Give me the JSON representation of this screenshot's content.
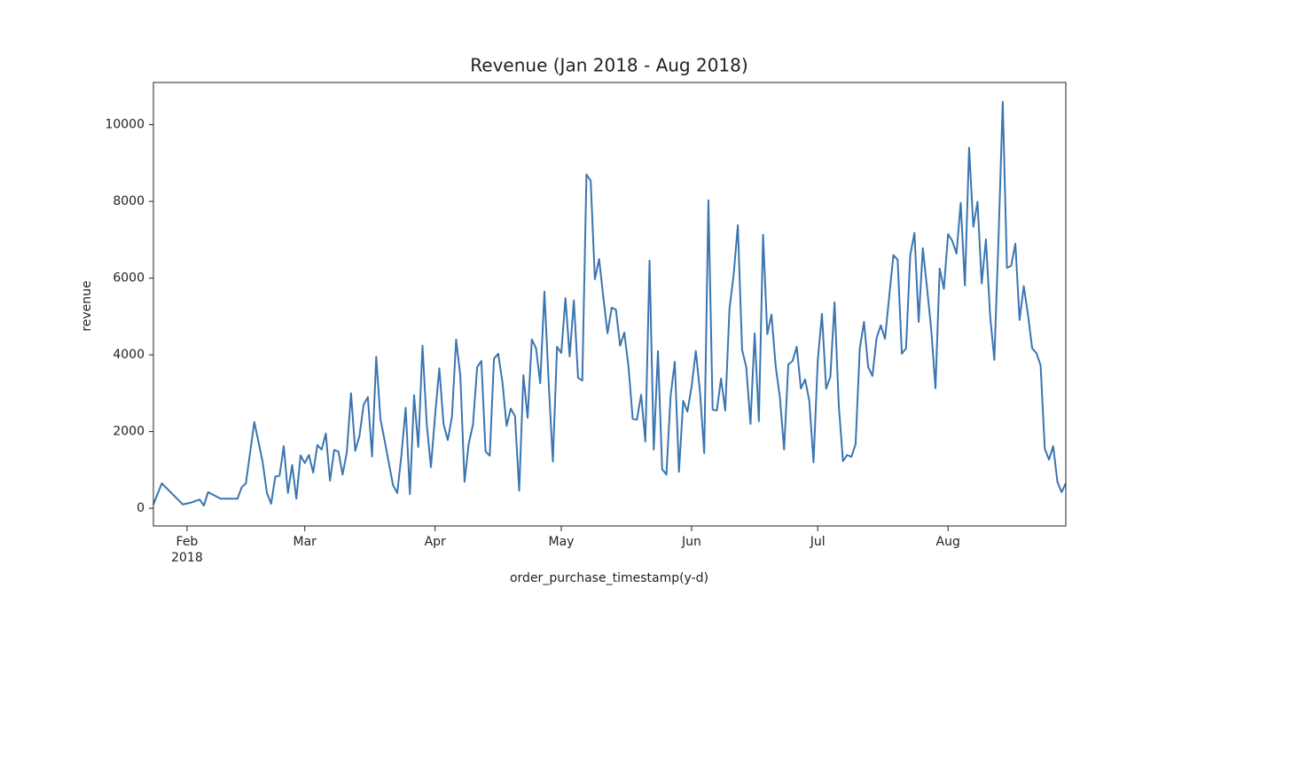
{
  "chart_data": {
    "type": "line",
    "title": "Revenue (Jan 2018 - Aug 2018)",
    "x_label": "order_purchase_timestamp(y-d)",
    "y_label": "revenue",
    "xlim": [
      "2018-01-24",
      "2018-08-29"
    ],
    "xticks": [
      {
        "value": "2018-02-01",
        "label": "Feb"
      },
      {
        "value": "2018-03-01",
        "label": "Mar"
      },
      {
        "value": "2018-04-01",
        "label": "Apr"
      },
      {
        "value": "2018-05-01",
        "label": "May"
      },
      {
        "value": "2018-06-01",
        "label": "Jun"
      },
      {
        "value": "2018-07-01",
        "label": "Jul"
      },
      {
        "value": "2018-08-01",
        "label": "Aug"
      }
    ],
    "xtick_year_label": "2018",
    "ylim": [
      -460,
      11100
    ],
    "yticks": [
      0,
      2000,
      4000,
      6000,
      8000,
      10000
    ],
    "x": [
      "2018-01-24",
      "2018-01-26",
      "2018-01-31",
      "2018-02-02",
      "2018-02-04",
      "2018-02-05",
      "2018-02-06",
      "2018-02-09",
      "2018-02-13",
      "2018-02-14",
      "2018-02-15",
      "2018-02-16",
      "2018-02-17",
      "2018-02-18",
      "2018-02-19",
      "2018-02-20",
      "2018-02-21",
      "2018-02-22",
      "2018-02-23",
      "2018-02-24",
      "2018-02-25",
      "2018-02-26",
      "2018-02-27",
      "2018-02-28",
      "2018-03-01",
      "2018-03-02",
      "2018-03-03",
      "2018-03-04",
      "2018-03-05",
      "2018-03-06",
      "2018-03-07",
      "2018-03-08",
      "2018-03-09",
      "2018-03-10",
      "2018-03-11",
      "2018-03-12",
      "2018-03-13",
      "2018-03-14",
      "2018-03-15",
      "2018-03-16",
      "2018-03-17",
      "2018-03-18",
      "2018-03-19",
      "2018-03-20",
      "2018-03-21",
      "2018-03-22",
      "2018-03-23",
      "2018-03-24",
      "2018-03-25",
      "2018-03-26",
      "2018-03-27",
      "2018-03-28",
      "2018-03-29",
      "2018-03-30",
      "2018-03-31",
      "2018-04-01",
      "2018-04-02",
      "2018-04-03",
      "2018-04-04",
      "2018-04-05",
      "2018-04-06",
      "2018-04-07",
      "2018-04-08",
      "2018-04-09",
      "2018-04-10",
      "2018-04-11",
      "2018-04-12",
      "2018-04-13",
      "2018-04-14",
      "2018-04-15",
      "2018-04-16",
      "2018-04-17",
      "2018-04-18",
      "2018-04-19",
      "2018-04-20",
      "2018-04-21",
      "2018-04-22",
      "2018-04-23",
      "2018-04-24",
      "2018-04-25",
      "2018-04-26",
      "2018-04-27",
      "2018-04-28",
      "2018-04-29",
      "2018-04-30",
      "2018-05-01",
      "2018-05-02",
      "2018-05-03",
      "2018-05-04",
      "2018-05-05",
      "2018-05-06",
      "2018-05-07",
      "2018-05-08",
      "2018-05-09",
      "2018-05-10",
      "2018-05-11",
      "2018-05-12",
      "2018-05-13",
      "2018-05-14",
      "2018-05-15",
      "2018-05-16",
      "2018-05-17",
      "2018-05-18",
      "2018-05-19",
      "2018-05-20",
      "2018-05-21",
      "2018-05-22",
      "2018-05-23",
      "2018-05-24",
      "2018-05-25",
      "2018-05-26",
      "2018-05-27",
      "2018-05-28",
      "2018-05-29",
      "2018-05-30",
      "2018-05-31",
      "2018-06-01",
      "2018-06-02",
      "2018-06-03",
      "2018-06-04",
      "2018-06-05",
      "2018-06-06",
      "2018-06-07",
      "2018-06-08",
      "2018-06-09",
      "2018-06-10",
      "2018-06-11",
      "2018-06-12",
      "2018-06-13",
      "2018-06-14",
      "2018-06-15",
      "2018-06-16",
      "2018-06-17",
      "2018-06-18",
      "2018-06-19",
      "2018-06-20",
      "2018-06-21",
      "2018-06-22",
      "2018-06-23",
      "2018-06-24",
      "2018-06-25",
      "2018-06-26",
      "2018-06-27",
      "2018-06-28",
      "2018-06-29",
      "2018-06-30",
      "2018-07-01",
      "2018-07-02",
      "2018-07-03",
      "2018-07-04",
      "2018-07-05",
      "2018-07-06",
      "2018-07-07",
      "2018-07-08",
      "2018-07-09",
      "2018-07-10",
      "2018-07-11",
      "2018-07-12",
      "2018-07-13",
      "2018-07-14",
      "2018-07-15",
      "2018-07-16",
      "2018-07-17",
      "2018-07-18",
      "2018-07-19",
      "2018-07-20",
      "2018-07-21",
      "2018-07-22",
      "2018-07-23",
      "2018-07-24",
      "2018-07-25",
      "2018-07-26",
      "2018-07-27",
      "2018-07-28",
      "2018-07-29",
      "2018-07-30",
      "2018-07-31",
      "2018-08-01",
      "2018-08-02",
      "2018-08-03",
      "2018-08-04",
      "2018-08-05",
      "2018-08-06",
      "2018-08-07",
      "2018-08-08",
      "2018-08-09",
      "2018-08-10",
      "2018-08-11",
      "2018-08-12",
      "2018-08-13",
      "2018-08-14",
      "2018-08-15",
      "2018-08-16",
      "2018-08-17",
      "2018-08-18",
      "2018-08-19",
      "2018-08-20",
      "2018-08-21",
      "2018-08-22",
      "2018-08-23",
      "2018-08-24",
      "2018-08-25",
      "2018-08-26",
      "2018-08-27",
      "2018-08-28",
      "2018-08-29"
    ],
    "series": [
      {
        "name": "revenue",
        "color": "#3a75b0",
        "values": [
          100,
          650,
          100,
          150,
          230,
          70,
          420,
          250,
          250,
          550,
          650,
          1450,
          2250,
          1730,
          1200,
          400,
          120,
          830,
          850,
          1620,
          400,
          1130,
          250,
          1380,
          1180,
          1390,
          930,
          1650,
          1530,
          1950,
          720,
          1520,
          1480,
          880,
          1460,
          3000,
          1500,
          1880,
          2700,
          2900,
          1350,
          3950,
          2330,
          1760,
          1180,
          600,
          400,
          1400,
          2620,
          370,
          2950,
          1600,
          4240,
          2200,
          1070,
          2430,
          3650,
          2200,
          1780,
          2380,
          4400,
          3450,
          690,
          1690,
          2180,
          3680,
          3840,
          1480,
          1370,
          3900,
          4030,
          3300,
          2150,
          2600,
          2400,
          460,
          3470,
          2360,
          4400,
          4170,
          3260,
          5650,
          3300,
          1220,
          4210,
          4050,
          5480,
          3960,
          5420,
          3400,
          3330,
          8700,
          8540,
          5970,
          6500,
          5510,
          4560,
          5230,
          5180,
          4240,
          4580,
          3680,
          2330,
          2310,
          2960,
          1740,
          6460,
          1530,
          4100,
          1020,
          880,
          2920,
          3820,
          950,
          2800,
          2520,
          3170,
          4100,
          3030,
          1440,
          8030,
          2570,
          2550,
          3380,
          2550,
          5190,
          6090,
          7380,
          4140,
          3680,
          2200,
          4560,
          2270,
          7130,
          4540,
          5050,
          3700,
          2890,
          1530,
          3750,
          3840,
          4210,
          3120,
          3360,
          2800,
          1200,
          3840,
          5070,
          3120,
          3430,
          5370,
          2690,
          1230,
          1390,
          1340,
          1670,
          4170,
          4860,
          3680,
          3450,
          4440,
          4770,
          4420,
          5530,
          6600,
          6480,
          4030,
          4170,
          6600,
          7180,
          4860,
          6780,
          5740,
          4650,
          3130,
          6250,
          5720,
          7150,
          6970,
          6640,
          7960,
          5810,
          9400,
          7340,
          7990,
          5860,
          7010,
          5020,
          3870,
          7060,
          10600,
          6270,
          6320,
          6900,
          4910,
          5790,
          5050,
          4170,
          4050,
          3730,
          1550,
          1270,
          1620,
          690,
          420,
          650
        ]
      }
    ]
  }
}
